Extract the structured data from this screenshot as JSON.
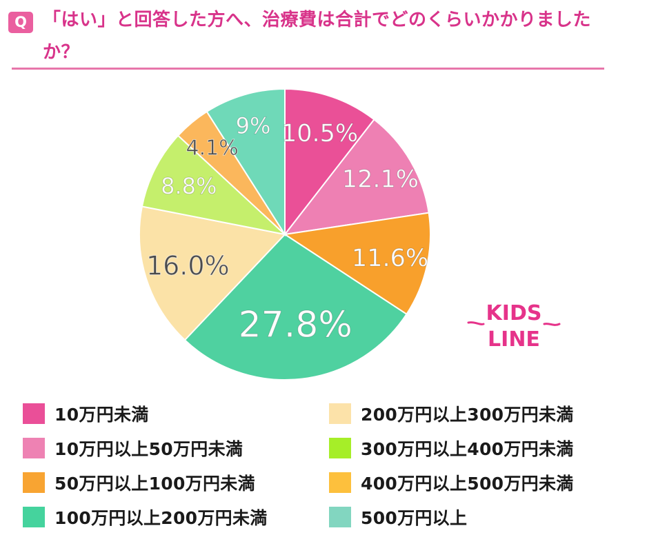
{
  "question": {
    "badge": "Q",
    "title": "「はい」と回答した方へ、治療費は合計でどのくらいかかりましたか？"
  },
  "brand": {
    "logo_line1": "KIDS",
    "logo_line2": "LINE",
    "logo_color": "#e6338a"
  },
  "chart_data": {
    "type": "pie",
    "start_angle_deg": 0,
    "direction": "clockwise",
    "slices": [
      {
        "label": "10万円未満",
        "value": 10.5,
        "display": "10.5%",
        "color": "#ea5097",
        "text_color": "#ffffff"
      },
      {
        "label": "10万円以上50万円未満",
        "value": 12.1,
        "display": "12.1%",
        "color": "#ee80b3",
        "text_color": "#ffffff"
      },
      {
        "label": "50万円以上100万円未満",
        "value": 11.6,
        "display": "11.6%",
        "color": "#f8a02c",
        "text_color": "#ffffff"
      },
      {
        "label": "100万円以上200万円未満",
        "value": 27.8,
        "display": "27.8%",
        "color": "#4fd1a0",
        "text_color": "#ffffff"
      },
      {
        "label": "200万円以上300万円未満",
        "value": 16.0,
        "display": "16.0%",
        "color": "#fbe2a7",
        "text_color": "#4a4a4a"
      },
      {
        "label": "300万円以上400万円未満",
        "value": 8.8,
        "display": "8.8%",
        "color": "#c5ef6c",
        "text_color": "#ffffff"
      },
      {
        "label": "400万円以上500万円未満",
        "value": 4.1,
        "display": "4.1%",
        "color": "#fbb75c",
        "text_color": "#4a4a4a"
      },
      {
        "label": "500万円以上",
        "value": 9.0,
        "display": "9%",
        "color": "#6fd9b8",
        "text_color": "#ffffff"
      }
    ],
    "legend": [
      {
        "label": "10万円未満",
        "color": "#ea4f98"
      },
      {
        "label": "10万円以上50万円未満",
        "color": "#ee82b3"
      },
      {
        "label": "50万円以上100万円未満",
        "color": "#f8a432"
      },
      {
        "label": "100万円以上200万円未満",
        "color": "#45d39d"
      },
      {
        "label": "200万円以上300万円未満",
        "color": "#fce2a9"
      },
      {
        "label": "300万円以上400万円未満",
        "color": "#a6ee28"
      },
      {
        "label": "400万円以上500万円未満",
        "color": "#fdc03d"
      },
      {
        "label": "500万円以上",
        "color": "#82d6c0"
      }
    ],
    "legend_placement": "bottom"
  }
}
